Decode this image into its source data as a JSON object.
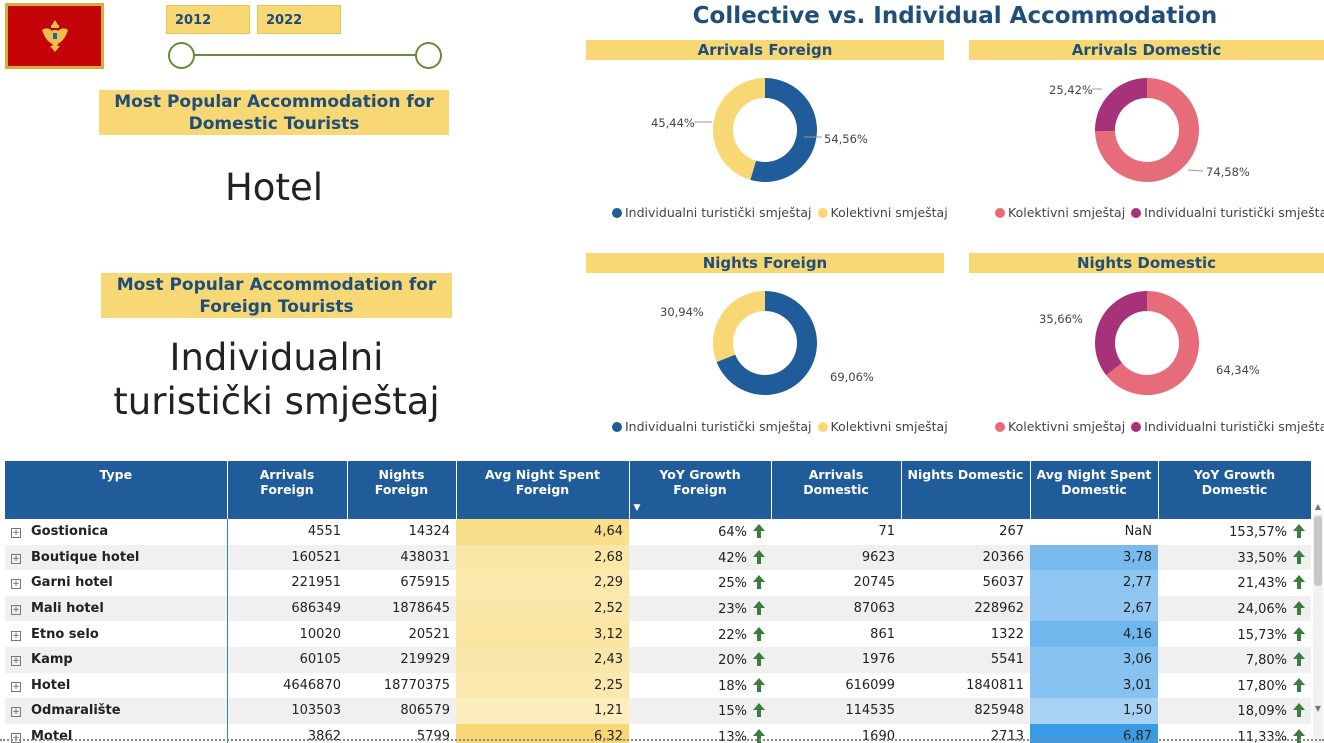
{
  "slicer": {
    "start_year": "2012",
    "end_year": "2022"
  },
  "popular_domestic": {
    "title": "Most Popular Accommodation for Domestic Tourists",
    "value": "Hotel"
  },
  "popular_foreign": {
    "title": "Most Popular Accommodation for Foreign Tourists",
    "value_line1": "Individualni",
    "value_line2": "turistički smještaj"
  },
  "colors": {
    "blue": "#1f5c99",
    "yellow": "#f8d775",
    "coral": "#e66c7a",
    "magenta": "#a8327a",
    "arrow_green": "#3b7d3e",
    "accent_blue_light": "#bcd9f5"
  },
  "main_title": "Collective vs. Individual Accommodation",
  "chart_data": [
    {
      "type": "pie",
      "variant": "donut",
      "title": "Arrivals Foreign",
      "slices": [
        {
          "label": "Individualni turistički smještaj",
          "value": 54.56,
          "display": "54,56%",
          "color": "#1f5c99"
        },
        {
          "label": "Kolektivni smještaj",
          "value": 45.44,
          "display": "45,44%",
          "color": "#f8d775"
        }
      ],
      "legend": "bottom"
    },
    {
      "type": "pie",
      "variant": "donut",
      "title": "Arrivals Domestic",
      "slices": [
        {
          "label": "Kolektivni smještaj",
          "value": 74.58,
          "display": "74,58%",
          "color": "#e66c7a"
        },
        {
          "label": "Individualni turistički smještaj",
          "value": 25.42,
          "display": "25,42%",
          "color": "#a8327a"
        }
      ],
      "legend": "bottom"
    },
    {
      "type": "pie",
      "variant": "donut",
      "title": "Nights Foreign",
      "slices": [
        {
          "label": "Individualni turistički smještaj",
          "value": 69.06,
          "display": "69,06%",
          "color": "#1f5c99"
        },
        {
          "label": "Kolektivni smještaj",
          "value": 30.94,
          "display": "30,94%",
          "color": "#f8d775"
        }
      ],
      "legend": "bottom"
    },
    {
      "type": "pie",
      "variant": "donut",
      "title": "Nights Domestic",
      "slices": [
        {
          "label": "Kolektivni smještaj",
          "value": 64.34,
          "display": "64,34%",
          "color": "#e66c7a"
        },
        {
          "label": "Individualni turistički smještaj",
          "value": 35.66,
          "display": "35,66%",
          "color": "#a8327a"
        }
      ],
      "legend": "bottom"
    },
    {
      "type": "table",
      "columns": [
        "Type",
        "Arrivals Foreign",
        "Nights Foreign",
        "Avg Night Spent Foreign",
        "YoY Growth Foreign",
        "Arrivals Domestic",
        "Nights Domestic",
        "Avg Night Spent Domestic",
        "YoY Growth Domestic"
      ],
      "sorted_column": "YoY Growth Foreign",
      "rows": [
        {
          "type": "Gostionica",
          "arrivals_foreign": "4551",
          "nights_foreign": "14324",
          "avg_foreign": "4,64",
          "yoy_foreign": "64%",
          "arrivals_domestic": "71",
          "nights_domestic": "267",
          "avg_domestic": "NaN",
          "yoy_domestic": "153,57%",
          "avg_foreign_val": 4.64,
          "avg_domestic_val": null
        },
        {
          "type": "Boutique hotel",
          "arrivals_foreign": "160521",
          "nights_foreign": "438031",
          "avg_foreign": "2,68",
          "yoy_foreign": "42%",
          "arrivals_domestic": "9623",
          "nights_domestic": "20366",
          "avg_domestic": "3,78",
          "yoy_domestic": "33,50%",
          "avg_foreign_val": 2.68,
          "avg_domestic_val": 3.78
        },
        {
          "type": "Garni hotel",
          "arrivals_foreign": "221951",
          "nights_foreign": "675915",
          "avg_foreign": "2,29",
          "yoy_foreign": "25%",
          "arrivals_domestic": "20745",
          "nights_domestic": "56037",
          "avg_domestic": "2,77",
          "yoy_domestic": "21,43%",
          "avg_foreign_val": 2.29,
          "avg_domestic_val": 2.77
        },
        {
          "type": "Mali hotel",
          "arrivals_foreign": "686349",
          "nights_foreign": "1878645",
          "avg_foreign": "2,52",
          "yoy_foreign": "23%",
          "arrivals_domestic": "87063",
          "nights_domestic": "228962",
          "avg_domestic": "2,67",
          "yoy_domestic": "24,06%",
          "avg_foreign_val": 2.52,
          "avg_domestic_val": 2.67
        },
        {
          "type": "Etno selo",
          "arrivals_foreign": "10020",
          "nights_foreign": "20521",
          "avg_foreign": "3,12",
          "yoy_foreign": "22%",
          "arrivals_domestic": "861",
          "nights_domestic": "1322",
          "avg_domestic": "4,16",
          "yoy_domestic": "15,73%",
          "avg_foreign_val": 3.12,
          "avg_domestic_val": 4.16
        },
        {
          "type": "Kamp",
          "arrivals_foreign": "60105",
          "nights_foreign": "219929",
          "avg_foreign": "2,43",
          "yoy_foreign": "20%",
          "arrivals_domestic": "1976",
          "nights_domestic": "5541",
          "avg_domestic": "3,06",
          "yoy_domestic": "7,80%",
          "avg_foreign_val": 2.43,
          "avg_domestic_val": 3.06
        },
        {
          "type": "Hotel",
          "arrivals_foreign": "4646870",
          "nights_foreign": "18770375",
          "avg_foreign": "2,25",
          "yoy_foreign": "18%",
          "arrivals_domestic": "616099",
          "nights_domestic": "1840811",
          "avg_domestic": "3,01",
          "yoy_domestic": "17,80%",
          "avg_foreign_val": 2.25,
          "avg_domestic_val": 3.01
        },
        {
          "type": "Odmaralište",
          "arrivals_foreign": "103503",
          "nights_foreign": "806579",
          "avg_foreign": "1,21",
          "yoy_foreign": "15%",
          "arrivals_domestic": "114535",
          "nights_domestic": "825948",
          "avg_domestic": "1,50",
          "yoy_domestic": "18,09%",
          "avg_foreign_val": 1.21,
          "avg_domestic_val": 1.5
        },
        {
          "type": "Motel",
          "arrivals_foreign": "3862",
          "nights_foreign": "5799",
          "avg_foreign": "6,32",
          "yoy_foreign": "13%",
          "arrivals_domestic": "1690",
          "nights_domestic": "2713",
          "avg_domestic": "6,87",
          "yoy_domestic": "11,33%",
          "avg_foreign_val": 6.32,
          "avg_domestic_val": 6.87
        }
      ]
    }
  ]
}
